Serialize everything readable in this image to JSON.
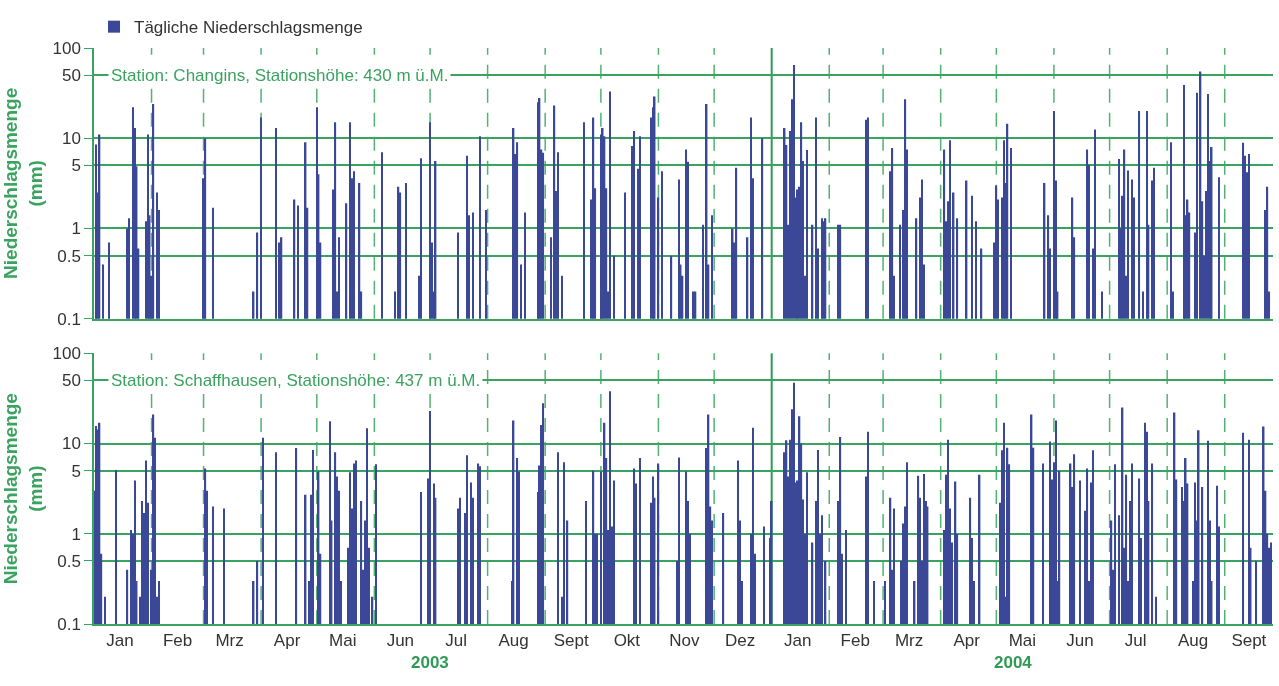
{
  "chart_data": [
    {
      "type": "bar",
      "ylabel": "Niederschlagsmenge\n(mm)",
      "log": "y",
      "grid": "y",
      "legend": "top left",
      "tick_labels": "y",
      "annotations": [
        "Station: Changins, Stationshöhe: 430 m ü.M."
      ],
      "xlim": [
        "2003-01-01",
        "2004-09-27"
      ],
      "ylim": [
        0.1,
        100
      ],
      "yticks": [
        0.1,
        0.5,
        1,
        5,
        10,
        50,
        100
      ],
      "x": [
        "2003-01-02",
        "2003-01-03",
        "2003-01-04",
        "2003-01-06",
        "2003-01-09",
        "2003-01-19",
        "2003-01-20",
        "2003-01-22",
        "2003-01-23",
        "2003-01-24",
        "2003-01-25",
        "2003-01-29",
        "2003-01-30",
        "2003-01-31",
        "2003-02-01",
        "2003-02-02",
        "2003-02-04",
        "2003-02-05",
        "2003-03-01",
        "2003-03-02",
        "2003-03-06",
        "2003-03-28",
        "2003-03-30",
        "2003-04-01",
        "2003-04-09",
        "2003-04-11",
        "2003-04-12",
        "2003-04-19",
        "2003-04-21",
        "2003-04-25",
        "2003-04-26",
        "2003-05-01",
        "2003-05-02",
        "2003-05-03",
        "2003-05-10",
        "2003-05-11",
        "2003-05-12",
        "2003-05-13",
        "2003-05-17",
        "2003-05-19",
        "2003-05-20",
        "2003-05-21",
        "2003-05-24",
        "2003-05-25",
        "2003-06-05",
        "2003-06-12",
        "2003-06-14",
        "2003-06-15",
        "2003-06-18",
        "2003-06-25",
        "2003-06-26",
        "2003-07-01",
        "2003-07-02",
        "2003-07-03",
        "2003-07-04",
        "2003-07-16",
        "2003-07-21",
        "2003-07-22",
        "2003-07-24",
        "2003-07-28",
        "2003-07-31",
        "2003-08-15",
        "2003-08-16",
        "2003-08-17",
        "2003-08-19",
        "2003-08-21",
        "2003-08-28",
        "2003-08-29",
        "2003-08-30",
        "2003-08-31",
        "2003-09-04",
        "2003-09-06",
        "2003-09-07",
        "2003-09-08",
        "2003-09-10",
        "2003-09-22",
        "2003-09-26",
        "2003-09-27",
        "2003-09-28",
        "2003-10-01",
        "2003-10-02",
        "2003-10-03",
        "2003-10-04",
        "2003-10-05",
        "2003-10-06",
        "2003-10-08",
        "2003-10-14",
        "2003-10-18",
        "2003-10-19",
        "2003-10-21",
        "2003-10-22",
        "2003-10-28",
        "2003-10-29",
        "2003-10-30",
        "2003-11-01",
        "2003-11-03",
        "2003-11-08",
        "2003-11-12",
        "2003-11-13",
        "2003-11-14",
        "2003-11-16",
        "2003-11-17",
        "2003-11-20",
        "2003-11-21",
        "2003-11-25",
        "2003-11-27",
        "2003-11-28",
        "2003-11-30",
        "2003-12-11",
        "2003-12-12",
        "2003-12-13",
        "2003-12-19",
        "2003-12-21",
        "2003-12-22",
        "2003-12-27",
        "2004-01-08",
        "2004-01-09",
        "2004-01-10",
        "2004-01-11",
        "2004-01-12",
        "2004-01-13",
        "2004-01-14",
        "2004-01-15",
        "2004-01-16",
        "2004-01-17",
        "2004-01-18",
        "2004-01-19",
        "2004-01-20",
        "2004-01-23",
        "2004-01-25",
        "2004-01-26",
        "2004-01-28",
        "2004-01-29",
        "2004-01-30",
        "2004-02-06",
        "2004-02-07",
        "2004-02-21",
        "2004-02-22",
        "2004-03-05",
        "2004-03-06",
        "2004-03-07",
        "2004-03-10",
        "2004-03-12",
        "2004-03-13",
        "2004-03-14",
        "2004-03-19",
        "2004-03-21",
        "2004-03-22",
        "2004-03-23",
        "2004-04-03",
        "2004-04-04",
        "2004-04-05",
        "2004-04-06",
        "2004-04-08",
        "2004-04-10",
        "2004-04-15",
        "2004-04-18",
        "2004-04-20",
        "2004-04-23",
        "2004-04-30",
        "2004-05-01",
        "2004-05-02",
        "2004-05-04",
        "2004-05-05",
        "2004-05-06",
        "2004-05-07",
        "2004-05-09",
        "2004-05-27",
        "2004-05-29",
        "2004-05-30",
        "2004-06-01",
        "2004-06-02",
        "2004-06-03",
        "2004-06-11",
        "2004-06-12",
        "2004-06-19",
        "2004-06-20",
        "2004-06-22",
        "2004-06-23",
        "2004-06-27",
        "2004-07-06",
        "2004-07-07",
        "2004-07-08",
        "2004-07-09",
        "2004-07-10",
        "2004-07-11",
        "2004-07-13",
        "2004-07-14",
        "2004-07-17",
        "2004-07-19",
        "2004-07-21",
        "2004-07-22",
        "2004-07-24",
        "2004-07-25",
        "2004-08-03",
        "2004-08-04",
        "2004-08-10",
        "2004-08-11",
        "2004-08-12",
        "2004-08-13",
        "2004-08-16",
        "2004-08-17",
        "2004-08-19",
        "2004-08-20",
        "2004-08-21",
        "2004-08-22",
        "2004-08-23",
        "2004-08-24",
        "2004-08-25",
        "2004-08-29",
        "2004-09-11",
        "2004-09-12",
        "2004-09-13",
        "2004-09-14",
        "2004-09-23",
        "2004-09-24",
        "2004-09-25"
      ],
      "series": [
        {
          "name": "Tägliche Niederschlagsmenge",
          "color": "#3b4898",
          "values": [
            8.5,
            2.5,
            11,
            0.4,
            0.7,
            1.0,
            1.3,
            22,
            13,
            4.9,
            0.6,
            1.2,
            11,
            1.4,
            0.3,
            24,
            2.5,
            1.6,
            3.6,
            10,
            1.7,
            0.2,
            0.9,
            17,
            13,
            0.7,
            0.8,
            2.1,
            1.8,
            9,
            1.7,
            22,
            4,
            0.7,
            2.7,
            15,
            0.2,
            0.8,
            1.9,
            15,
            3.6,
            4.3,
            3.2,
            0.2,
            7,
            0.2,
            2.9,
            2.5,
            3.2,
            0.3,
            6,
            15,
            0.7,
            0.2,
            5.6,
            0.9,
            6.4,
            1.4,
            1.5,
            10.5,
            1.6,
            13,
            6.7,
            9,
            0.4,
            1.5,
            25,
            28,
            7.5,
            6.9,
            0.8,
            23,
            2.6,
            7,
            0.3,
            15,
            2.1,
            17,
            2.8,
            11,
            13,
            10.5,
            2.8,
            0.2,
            33,
            0.5,
            2.5,
            8.2,
            12,
            4.6,
            10.5,
            17,
            22,
            29,
            2.2,
            4.3,
            0.5,
            3.5,
            0.4,
            0.3,
            7.5,
            5.5,
            0.2,
            0.2,
            1.1,
            24,
            0.4,
            1.4,
            1.0,
            0.7,
            4.7,
            0.8,
            17,
            3.6,
            10,
            13,
            8.4,
            1.1,
            12,
            27,
            65,
            2.2,
            2.7,
            2.9,
            15,
            5.6,
            0.3,
            7.4,
            1.1,
            17,
            0.6,
            1.3,
            1.2,
            1.3,
            1.1,
            1.1,
            16,
            17,
            4.3,
            7.8,
            0.3,
            1.1,
            1.6,
            27,
            7.5,
            1.3,
            2.2,
            3.5,
            0.4,
            7.5,
            1.2,
            2,
            9.5,
            2.5,
            1.3,
            3.4,
            2.3,
            1.2,
            0.6,
            0.7,
            3,
            2.1,
            2.2,
            9.5,
            3.2,
            14.5,
            7.8,
            3.2,
            1.4,
            0.6,
            20,
            3.4,
            0.2,
            2.2,
            0.8,
            7.5,
            5.1,
            0.6,
            12.5,
            0.2,
            5.9,
            1.0,
            2.3,
            7.5,
            0.3,
            4.4,
            3.5,
            2.2,
            20,
            0.2,
            20,
            1.1,
            3.4,
            4.7,
            9,
            0.2,
            39,
            1.4,
            2.1,
            1.5,
            0.9,
            32,
            55,
            2,
            0.5,
            2.6,
            31,
            5.6,
            8,
            3.7,
            8.9,
            6.4,
            4.2,
            6.7,
            1.6,
            2.9,
            0.2
          ]
        }
      ],
      "ref_lines": [
        {
          "axis": "x",
          "value": "2003-02-01",
          "line_style": "dashed",
          "color": "#52b274"
        },
        {
          "axis": "x",
          "value": "2003-03-01",
          "line_style": "dashed",
          "color": "#52b274"
        },
        {
          "axis": "x",
          "value": "2003-04-01",
          "line_style": "dashed",
          "color": "#52b274"
        },
        {
          "axis": "x",
          "value": "2003-05-01",
          "line_style": "dashed",
          "color": "#52b274"
        },
        {
          "axis": "x",
          "value": "2003-06-01",
          "line_style": "dashed",
          "color": "#52b274"
        },
        {
          "axis": "x",
          "value": "2003-07-01",
          "line_style": "dashed",
          "color": "#52b274"
        },
        {
          "axis": "x",
          "value": "2003-08-01",
          "line_style": "dashed",
          "color": "#52b274"
        },
        {
          "axis": "x",
          "value": "2003-09-01",
          "line_style": "dashed",
          "color": "#52b274"
        },
        {
          "axis": "x",
          "value": "2003-10-01",
          "line_style": "dashed",
          "color": "#52b274"
        },
        {
          "axis": "x",
          "value": "2003-11-01",
          "line_style": "dashed",
          "color": "#52b274"
        },
        {
          "axis": "x",
          "value": "2003-12-01",
          "line_style": "dashed",
          "color": "#52b274"
        },
        {
          "axis": "x",
          "value": "2004-01-01",
          "line_style": "solid",
          "color": "#2e9a55"
        },
        {
          "axis": "x",
          "value": "2004-02-01",
          "line_style": "dashed",
          "color": "#52b274"
        },
        {
          "axis": "x",
          "value": "2004-03-01",
          "line_style": "dashed",
          "color": "#52b274"
        },
        {
          "axis": "x",
          "value": "2004-04-01",
          "line_style": "dashed",
          "color": "#52b274"
        },
        {
          "axis": "x",
          "value": "2004-05-01",
          "line_style": "dashed",
          "color": "#52b274"
        },
        {
          "axis": "x",
          "value": "2004-06-01",
          "line_style": "dashed",
          "color": "#52b274"
        },
        {
          "axis": "x",
          "value": "2004-07-01",
          "line_style": "dashed",
          "color": "#52b274"
        },
        {
          "axis": "x",
          "value": "2004-08-01",
          "line_style": "dashed",
          "color": "#52b274"
        },
        {
          "axis": "x",
          "value": "2004-09-01",
          "line_style": "dashed",
          "color": "#52b274"
        }
      ]
    },
    {
      "type": "bar",
      "ylabel": "Niederschlagsmenge\n(mm)",
      "log": "y",
      "grid": "y",
      "annotations": [
        "Station: Schaffhausen, Stationshöhe: 437 m ü.M.",
        {
          "text": "2003",
          "x": "2003-07-01"
        },
        {
          "text": "2004",
          "x": "2004-05-10"
        }
      ],
      "xlim": [
        "2003-01-01",
        "2004-09-27"
      ],
      "ylim": [
        0.1,
        100
      ],
      "yticks": [
        0.1,
        0.5,
        1,
        5,
        10,
        50,
        100
      ],
      "xticks": [
        {
          "value": "2003-01-15",
          "label": "Jan"
        },
        {
          "value": "2003-02-15",
          "label": "Feb"
        },
        {
          "value": "2003-03-15",
          "label": "Mrz"
        },
        {
          "value": "2003-04-15",
          "label": "Apr"
        },
        {
          "value": "2003-05-15",
          "label": "Mai"
        },
        {
          "value": "2003-06-15",
          "label": "Jun"
        },
        {
          "value": "2003-07-15",
          "label": "Jul"
        },
        {
          "value": "2003-08-15",
          "label": "Aug"
        },
        {
          "value": "2003-09-15",
          "label": "Sept"
        },
        {
          "value": "2003-10-15",
          "label": "Okt"
        },
        {
          "value": "2003-11-15",
          "label": "Nov"
        },
        {
          "value": "2003-12-15",
          "label": "Dez"
        },
        {
          "value": "2004-01-15",
          "label": "Jan"
        },
        {
          "value": "2004-02-15",
          "label": "Feb"
        },
        {
          "value": "2004-03-15",
          "label": "Mrz"
        },
        {
          "value": "2004-04-15",
          "label": "Apr"
        },
        {
          "value": "2004-05-15",
          "label": "Mai"
        },
        {
          "value": "2004-06-15",
          "label": "Jun"
        },
        {
          "value": "2004-07-15",
          "label": "Jul"
        },
        {
          "value": "2004-08-15",
          "label": "Aug"
        },
        {
          "value": "2004-09-14",
          "label": "Sept"
        }
      ],
      "x": [
        "2003-01-01",
        "2003-01-02",
        "2003-01-03",
        "2003-01-04",
        "2003-01-05",
        "2003-01-07",
        "2003-01-13",
        "2003-01-19",
        "2003-01-21",
        "2003-01-22",
        "2003-01-23",
        "2003-01-24",
        "2003-01-26",
        "2003-01-27",
        "2003-01-28",
        "2003-01-29",
        "2003-01-30",
        "2003-02-01",
        "2003-02-02",
        "2003-02-03",
        "2003-02-04",
        "2003-02-05",
        "2003-03-02",
        "2003-03-03",
        "2003-03-06",
        "2003-03-12",
        "2003-03-28",
        "2003-03-30",
        "2003-04-02",
        "2003-04-09",
        "2003-04-20",
        "2003-04-25",
        "2003-04-27",
        "2003-04-28",
        "2003-04-29",
        "2003-05-02",
        "2003-05-03",
        "2003-05-08",
        "2003-05-09",
        "2003-05-11",
        "2003-05-12",
        "2003-05-13",
        "2003-05-14",
        "2003-05-18",
        "2003-05-19",
        "2003-05-20",
        "2003-05-21",
        "2003-05-22",
        "2003-05-25",
        "2003-05-26",
        "2003-05-27",
        "2003-05-28",
        "2003-05-29",
        "2003-05-31",
        "2003-06-02",
        "2003-06-26",
        "2003-06-30",
        "2003-07-01",
        "2003-07-03",
        "2003-07-04",
        "2003-07-16",
        "2003-07-17",
        "2003-07-20",
        "2003-07-21",
        "2003-07-23",
        "2003-07-24",
        "2003-07-27",
        "2003-07-28",
        "2003-08-14",
        "2003-08-15",
        "2003-08-17",
        "2003-08-18",
        "2003-08-28",
        "2003-08-29",
        "2003-08-30",
        "2003-08-31",
        "2003-09-08",
        "2003-09-10",
        "2003-09-11",
        "2003-09-13",
        "2003-09-23",
        "2003-09-27",
        "2003-09-28",
        "2003-09-29",
        "2003-10-01",
        "2003-10-03",
        "2003-10-04",
        "2003-10-05",
        "2003-10-06",
        "2003-10-07",
        "2003-10-08",
        "2003-10-19",
        "2003-10-20",
        "2003-10-22",
        "2003-10-28",
        "2003-10-29",
        "2003-10-30",
        "2003-11-01",
        "2003-11-11",
        "2003-11-12",
        "2003-11-16",
        "2003-11-17",
        "2003-11-18",
        "2003-11-27",
        "2003-11-28",
        "2003-11-29",
        "2003-11-30",
        "2003-12-06",
        "2003-12-14",
        "2003-12-15",
        "2003-12-16",
        "2003-12-21",
        "2003-12-22",
        "2003-12-23",
        "2003-12-28",
        "2003-12-31",
        "2004-01-01",
        "2004-01-08",
        "2004-01-09",
        "2004-01-10",
        "2004-01-11",
        "2004-01-12",
        "2004-01-13",
        "2004-01-14",
        "2004-01-15",
        "2004-01-16",
        "2004-01-17",
        "2004-01-18",
        "2004-01-19",
        "2004-01-20",
        "2004-01-23",
        "2004-01-25",
        "2004-01-26",
        "2004-01-27",
        "2004-01-28",
        "2004-01-30",
        "2004-02-06",
        "2004-02-07",
        "2004-02-08",
        "2004-02-10",
        "2004-02-21",
        "2004-02-22",
        "2004-02-25",
        "2004-03-02",
        "2004-03-05",
        "2004-03-06",
        "2004-03-07",
        "2004-03-11",
        "2004-03-12",
        "2004-03-13",
        "2004-03-14",
        "2004-03-18",
        "2004-03-20",
        "2004-03-21",
        "2004-03-22",
        "2004-03-23",
        "2004-03-24",
        "2004-03-25",
        "2004-04-03",
        "2004-04-04",
        "2004-04-05",
        "2004-04-06",
        "2004-04-07",
        "2004-04-09",
        "2004-04-10",
        "2004-04-17",
        "2004-04-18",
        "2004-04-19",
        "2004-04-22",
        "2004-05-03",
        "2004-05-04",
        "2004-05-05",
        "2004-05-06",
        "2004-05-07",
        "2004-05-08",
        "2004-05-20",
        "2004-05-21",
        "2004-05-26",
        "2004-05-30",
        "2004-05-31",
        "2004-06-01",
        "2004-06-02",
        "2004-06-03",
        "2004-06-04",
        "2004-06-10",
        "2004-06-11",
        "2004-06-12",
        "2004-06-15",
        "2004-06-18",
        "2004-06-19",
        "2004-06-20",
        "2004-06-21",
        "2004-06-22",
        "2004-07-02",
        "2004-07-03",
        "2004-07-04",
        "2004-07-06",
        "2004-07-08",
        "2004-07-09",
        "2004-07-10",
        "2004-07-11",
        "2004-07-12",
        "2004-07-13",
        "2004-07-17",
        "2004-07-18",
        "2004-07-20",
        "2004-07-21",
        "2004-07-22",
        "2004-07-24",
        "2004-07-26",
        "2004-08-05",
        "2004-08-06",
        "2004-08-09",
        "2004-08-10",
        "2004-08-11",
        "2004-08-12",
        "2004-08-15",
        "2004-08-16",
        "2004-08-17",
        "2004-08-18",
        "2004-08-20",
        "2004-08-23",
        "2004-08-24",
        "2004-08-25",
        "2004-08-28",
        "2004-08-29",
        "2004-09-11",
        "2004-09-14",
        "2004-09-15",
        "2004-09-18",
        "2004-09-22",
        "2004-09-23",
        "2004-09-24",
        "2004-09-25",
        "2004-09-26"
      ],
      "series": [
        {
          "color": "#3b4898",
          "values": [
            3.0,
            15.6,
            14.3,
            17,
            0.6,
            0.2,
            5.1,
            0.4,
            1.1,
            1.0,
            3.9,
            0.3,
            0.2,
            2.3,
            1.7,
            6.5,
            2.2,
            0.4,
            21,
            11.6,
            0.2,
            0.3,
            5.3,
            3.0,
            2.0,
            1.9,
            0.3,
            0.5,
            11.6,
            8,
            8.9,
            2.7,
            0.3,
            2.7,
            8.5,
            4.9,
            0.6,
            17.6,
            1.4,
            8,
            4.3,
            3.0,
            0.3,
            0.7,
            4.8,
            1.9,
            6,
            6.5,
            2.3,
            0.4,
            1.4,
            14.8,
            0.7,
            0.2,
            5.9,
            2.9,
            4.1,
            23,
            3.6,
            2.5,
            1.9,
            2.5,
            1.7,
            7.4,
            3.7,
            2.5,
            6,
            5.6,
            0.3,
            18,
            6.9,
            4.9,
            2.9,
            5.7,
            16,
            28,
            8,
            0.2,
            6.2,
            1.4,
            2.3,
            5.0,
            1.0,
            1.0,
            4.9,
            17,
            6.9,
            1.1,
            38,
            1.2,
            3.9,
            5.3,
            3.6,
            6.9,
            2.2,
            4.3,
            2.5,
            6,
            0.5,
            7,
            4.9,
            2.3,
            1.0,
            8.9,
            21,
            2,
            1.4,
            1.7,
            6.5,
            1.4,
            0.3,
            1.0,
            15,
            0.6,
            1.2,
            0.9,
            2.3,
            8,
            10.9,
            4.3,
            11,
            24,
            47,
            3.7,
            3.9,
            20,
            10,
            2.4,
            1.0,
            4.8,
            0.8,
            2.3,
            8.5,
            1.0,
            1.6,
            0.5,
            2.3,
            11.8,
            0.6,
            1.1,
            4.3,
            13.5,
            0.3,
            0.3,
            2.5,
            0.4,
            1.9,
            0.5,
            1.3,
            2,
            6.2,
            0.3,
            4.4,
            2.5,
            0.5,
            4.6,
            2.3,
            2,
            1.1,
            4.5,
            11,
            1.9,
            0.8,
            3.8,
            1.0,
            2.5,
            0.9,
            0.3,
            4.5,
            2.2,
            8.4,
            17,
            0.2,
            9.0,
            5.9,
            21,
            9,
            6,
            10.5,
            4.0,
            6.2,
            18,
            0.3,
            5,
            6,
            3.3,
            7.6,
            3.9,
            1.8,
            5.3,
            0.3,
            3.7,
            8.4,
            1.4,
            0.4,
            5.9,
            1.6,
            25,
            0.7,
            4.5,
            0.3,
            2.3,
            6,
            4.1,
            0.9,
            17,
            13.5,
            2.3,
            6,
            0.2,
            22,
            4,
            3.3,
            2.3,
            6.9,
            3.6,
            0.3,
            3.7,
            1.4,
            14,
            3.3,
            10.7,
            1.4,
            0.3,
            3.4,
            1.2,
            13.2,
            11,
            0.7,
            0.5,
            15.4,
            3,
            1.0,
            0.7,
            0.8
          ]
        }
      ],
      "ref_lines": [
        {
          "axis": "x",
          "value": "2003-02-01",
          "line_style": "dashed",
          "color": "#52b274"
        },
        {
          "axis": "x",
          "value": "2003-03-01",
          "line_style": "dashed",
          "color": "#52b274"
        },
        {
          "axis": "x",
          "value": "2003-04-01",
          "line_style": "dashed",
          "color": "#52b274"
        },
        {
          "axis": "x",
          "value": "2003-05-01",
          "line_style": "dashed",
          "color": "#52b274"
        },
        {
          "axis": "x",
          "value": "2003-06-01",
          "line_style": "dashed",
          "color": "#52b274"
        },
        {
          "axis": "x",
          "value": "2003-07-01",
          "line_style": "dashed",
          "color": "#52b274"
        },
        {
          "axis": "x",
          "value": "2003-08-01",
          "line_style": "dashed",
          "color": "#52b274"
        },
        {
          "axis": "x",
          "value": "2003-09-01",
          "line_style": "dashed",
          "color": "#52b274"
        },
        {
          "axis": "x",
          "value": "2003-10-01",
          "line_style": "dashed",
          "color": "#52b274"
        },
        {
          "axis": "x",
          "value": "2003-11-01",
          "line_style": "dashed",
          "color": "#52b274"
        },
        {
          "axis": "x",
          "value": "2003-12-01",
          "line_style": "dashed",
          "color": "#52b274"
        },
        {
          "axis": "x",
          "value": "2004-01-01",
          "line_style": "solid",
          "color": "#2e9a55"
        },
        {
          "axis": "x",
          "value": "2004-02-01",
          "line_style": "dashed",
          "color": "#52b274"
        },
        {
          "axis": "x",
          "value": "2004-03-01",
          "line_style": "dashed",
          "color": "#52b274"
        },
        {
          "axis": "x",
          "value": "2004-04-01",
          "line_style": "dashed",
          "color": "#52b274"
        },
        {
          "axis": "x",
          "value": "2004-05-01",
          "line_style": "dashed",
          "color": "#52b274"
        },
        {
          "axis": "x",
          "value": "2004-06-01",
          "line_style": "dashed",
          "color": "#52b274"
        },
        {
          "axis": "x",
          "value": "2004-07-01",
          "line_style": "dashed",
          "color": "#52b274"
        },
        {
          "axis": "x",
          "value": "2004-08-01",
          "line_style": "dashed",
          "color": "#52b274"
        },
        {
          "axis": "x",
          "value": "2004-09-01",
          "line_style": "dashed",
          "color": "#52b274"
        }
      ]
    }
  ]
}
